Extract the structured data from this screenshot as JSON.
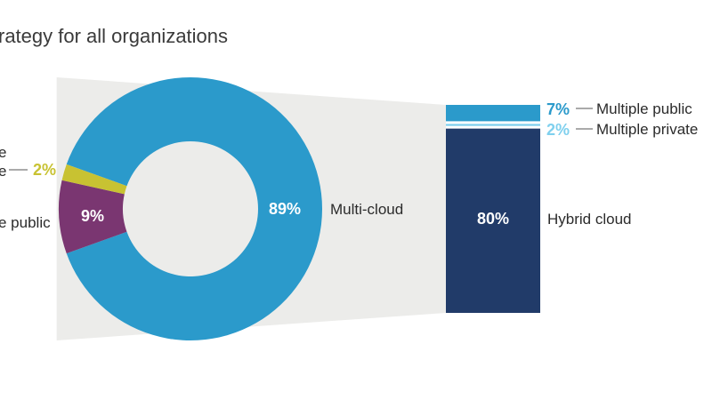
{
  "chart_data": {
    "type": "pie",
    "title": "rategy for all organizations",
    "donut": {
      "slices": [
        {
          "label": "Multi-cloud",
          "value": 89,
          "value_label": "89%",
          "color": "#2b9acb"
        },
        {
          "label": "e public",
          "value": 9,
          "value_label": "9%",
          "color": "#7a3671"
        },
        {
          "label": "e",
          "label_top": "e",
          "value": 2,
          "value_label": "2%",
          "color": "#c8c232"
        }
      ]
    },
    "breakdown_bar": {
      "parent": "Multi-cloud",
      "segments": [
        {
          "label": "Hybrid cloud",
          "value": 80,
          "value_label": "80%",
          "color": "#213b69"
        },
        {
          "label": "Multiple private",
          "value": 2,
          "value_label": "2%",
          "color": "#7fd0ee"
        },
        {
          "label": "Multiple public",
          "value": 7,
          "value_label": "7%",
          "color": "#2b9acb"
        }
      ]
    },
    "connector_color": "#ececea"
  }
}
